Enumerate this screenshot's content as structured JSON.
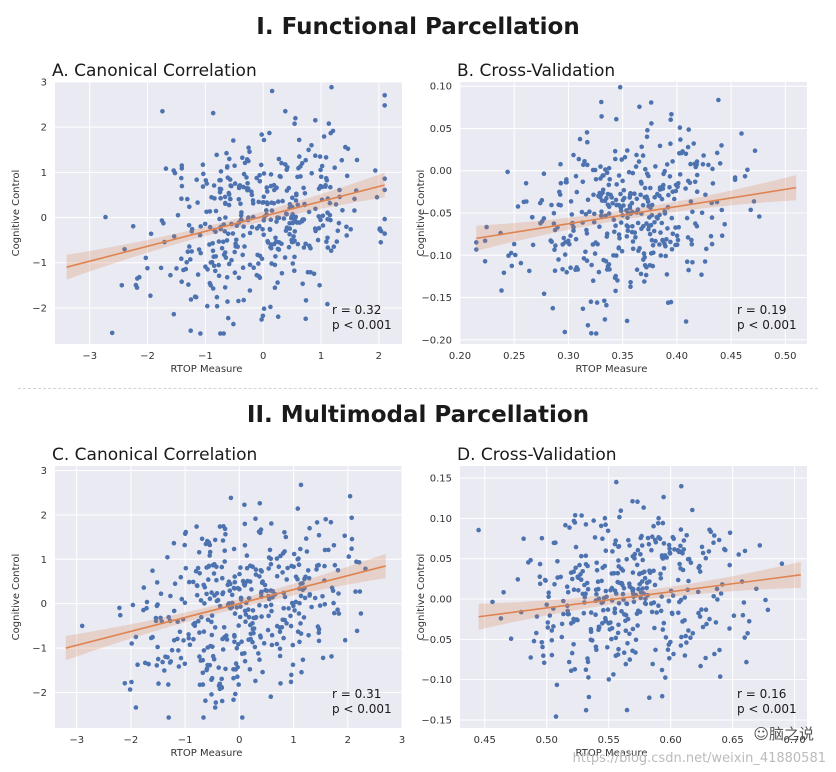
{
  "figure": {
    "section1_title": "I. Functional Parcellation",
    "section2_title": "II. Multimodal Parcellation",
    "watermark": "https://blog.csdn.net/weixin_41880581",
    "logo_text": "☺脑之说"
  },
  "colors": {
    "point": "#4c72b0",
    "line": "#dd8452",
    "band": "#dd8452",
    "plot_bg": "#eaeaf2",
    "grid": "#ffffff"
  },
  "chart_data": [
    {
      "id": "A",
      "type": "scatter",
      "title": "A. Canonical Correlation",
      "xlabel": "RTOP Measure",
      "ylabel": "Cognitive Control",
      "xlim": [
        -3.6,
        2.4
      ],
      "ylim": [
        -2.8,
        3.0
      ],
      "xticks": [
        -3,
        -2,
        -1,
        0,
        1,
        2
      ],
      "xtick_labels": [
        "−3",
        "−2",
        "−1",
        "0",
        "1",
        "2"
      ],
      "yticks": [
        -2,
        -1,
        0,
        1,
        2,
        3
      ],
      "ytick_labels": [
        "−2",
        "−1",
        "0",
        "1",
        "2",
        "3"
      ],
      "x_mean": -0.05,
      "x_sd": 0.95,
      "y_sd": 1.0,
      "fit": {
        "x0": -3.4,
        "y0": -1.1,
        "x1": 2.1,
        "y1": 0.72,
        "band": 0.22
      },
      "n_points": 420,
      "seed": 11,
      "annotation": {
        "r": "r = 0.32",
        "p": "p < 0.001"
      }
    },
    {
      "id": "B",
      "type": "scatter",
      "title": "B. Cross-Validation",
      "xlabel": "RTOP Measure",
      "ylabel": "Cognitive Control",
      "xlim": [
        0.2,
        0.52
      ],
      "ylim": [
        -0.205,
        0.105
      ],
      "xticks": [
        0.2,
        0.25,
        0.3,
        0.35,
        0.4,
        0.45,
        0.5
      ],
      "xtick_labels": [
        "0.20",
        "0.25",
        "0.30",
        "0.35",
        "0.40",
        "0.45",
        "0.50"
      ],
      "yticks": [
        -0.2,
        -0.15,
        -0.1,
        -0.05,
        0.0,
        0.05,
        0.1
      ],
      "ytick_labels": [
        "−0.20",
        "−0.15",
        "−0.10",
        "−0.05",
        "0.00",
        "0.05",
        "0.10"
      ],
      "x_mean": 0.35,
      "x_sd": 0.05,
      "y_sd": 0.05,
      "fit": {
        "x0": 0.215,
        "y0": -0.08,
        "x1": 0.51,
        "y1": -0.02,
        "band": 0.012
      },
      "n_points": 400,
      "seed": 23,
      "annotation": {
        "r": "r = 0.19",
        "p": "p < 0.001"
      }
    },
    {
      "id": "C",
      "type": "scatter",
      "title": "C. Canonical Correlation",
      "xlabel": "RTOP Measure",
      "ylabel": "Cognitive Control",
      "xlim": [
        -3.4,
        3.0
      ],
      "ylim": [
        -2.8,
        3.1
      ],
      "xticks": [
        -3,
        -2,
        -1,
        0,
        1,
        2,
        3
      ],
      "xtick_labels": [
        "−3",
        "−2",
        "−1",
        "0",
        "1",
        "2",
        "3"
      ],
      "yticks": [
        -2,
        -1,
        0,
        1,
        2,
        3
      ],
      "ytick_labels": [
        "−2",
        "−1",
        "0",
        "1",
        "2",
        "3"
      ],
      "x_mean": 0.05,
      "x_sd": 0.95,
      "y_sd": 1.0,
      "fit": {
        "x0": -3.2,
        "y0": -1.0,
        "x1": 2.7,
        "y1": 0.85,
        "band": 0.22
      },
      "n_points": 420,
      "seed": 37,
      "annotation": {
        "r": "r = 0.31",
        "p": "p < 0.001"
      }
    },
    {
      "id": "D",
      "type": "scatter",
      "title": "D. Cross-Validation",
      "xlabel": "RTOP Measure",
      "ylabel": "Cognitive Control",
      "xlim": [
        0.43,
        0.71
      ],
      "ylim": [
        -0.16,
        0.165
      ],
      "xticks": [
        0.45,
        0.5,
        0.55,
        0.6,
        0.65,
        0.7
      ],
      "xtick_labels": [
        "0.45",
        "0.50",
        "0.55",
        "0.60",
        "0.65",
        "0.70"
      ],
      "yticks": [
        -0.15,
        -0.1,
        -0.05,
        0.0,
        0.05,
        0.1,
        0.15
      ],
      "ytick_labels": [
        "−0.15",
        "−0.10",
        "−0.05",
        "0.00",
        "0.05",
        "0.10",
        "0.15"
      ],
      "x_mean": 0.57,
      "x_sd": 0.045,
      "y_sd": 0.055,
      "fit": {
        "x0": 0.445,
        "y0": -0.022,
        "x1": 0.705,
        "y1": 0.03,
        "band": 0.013
      },
      "n_points": 400,
      "seed": 51,
      "annotation": {
        "r": "r = 0.16",
        "p": "p < 0.001"
      }
    }
  ]
}
